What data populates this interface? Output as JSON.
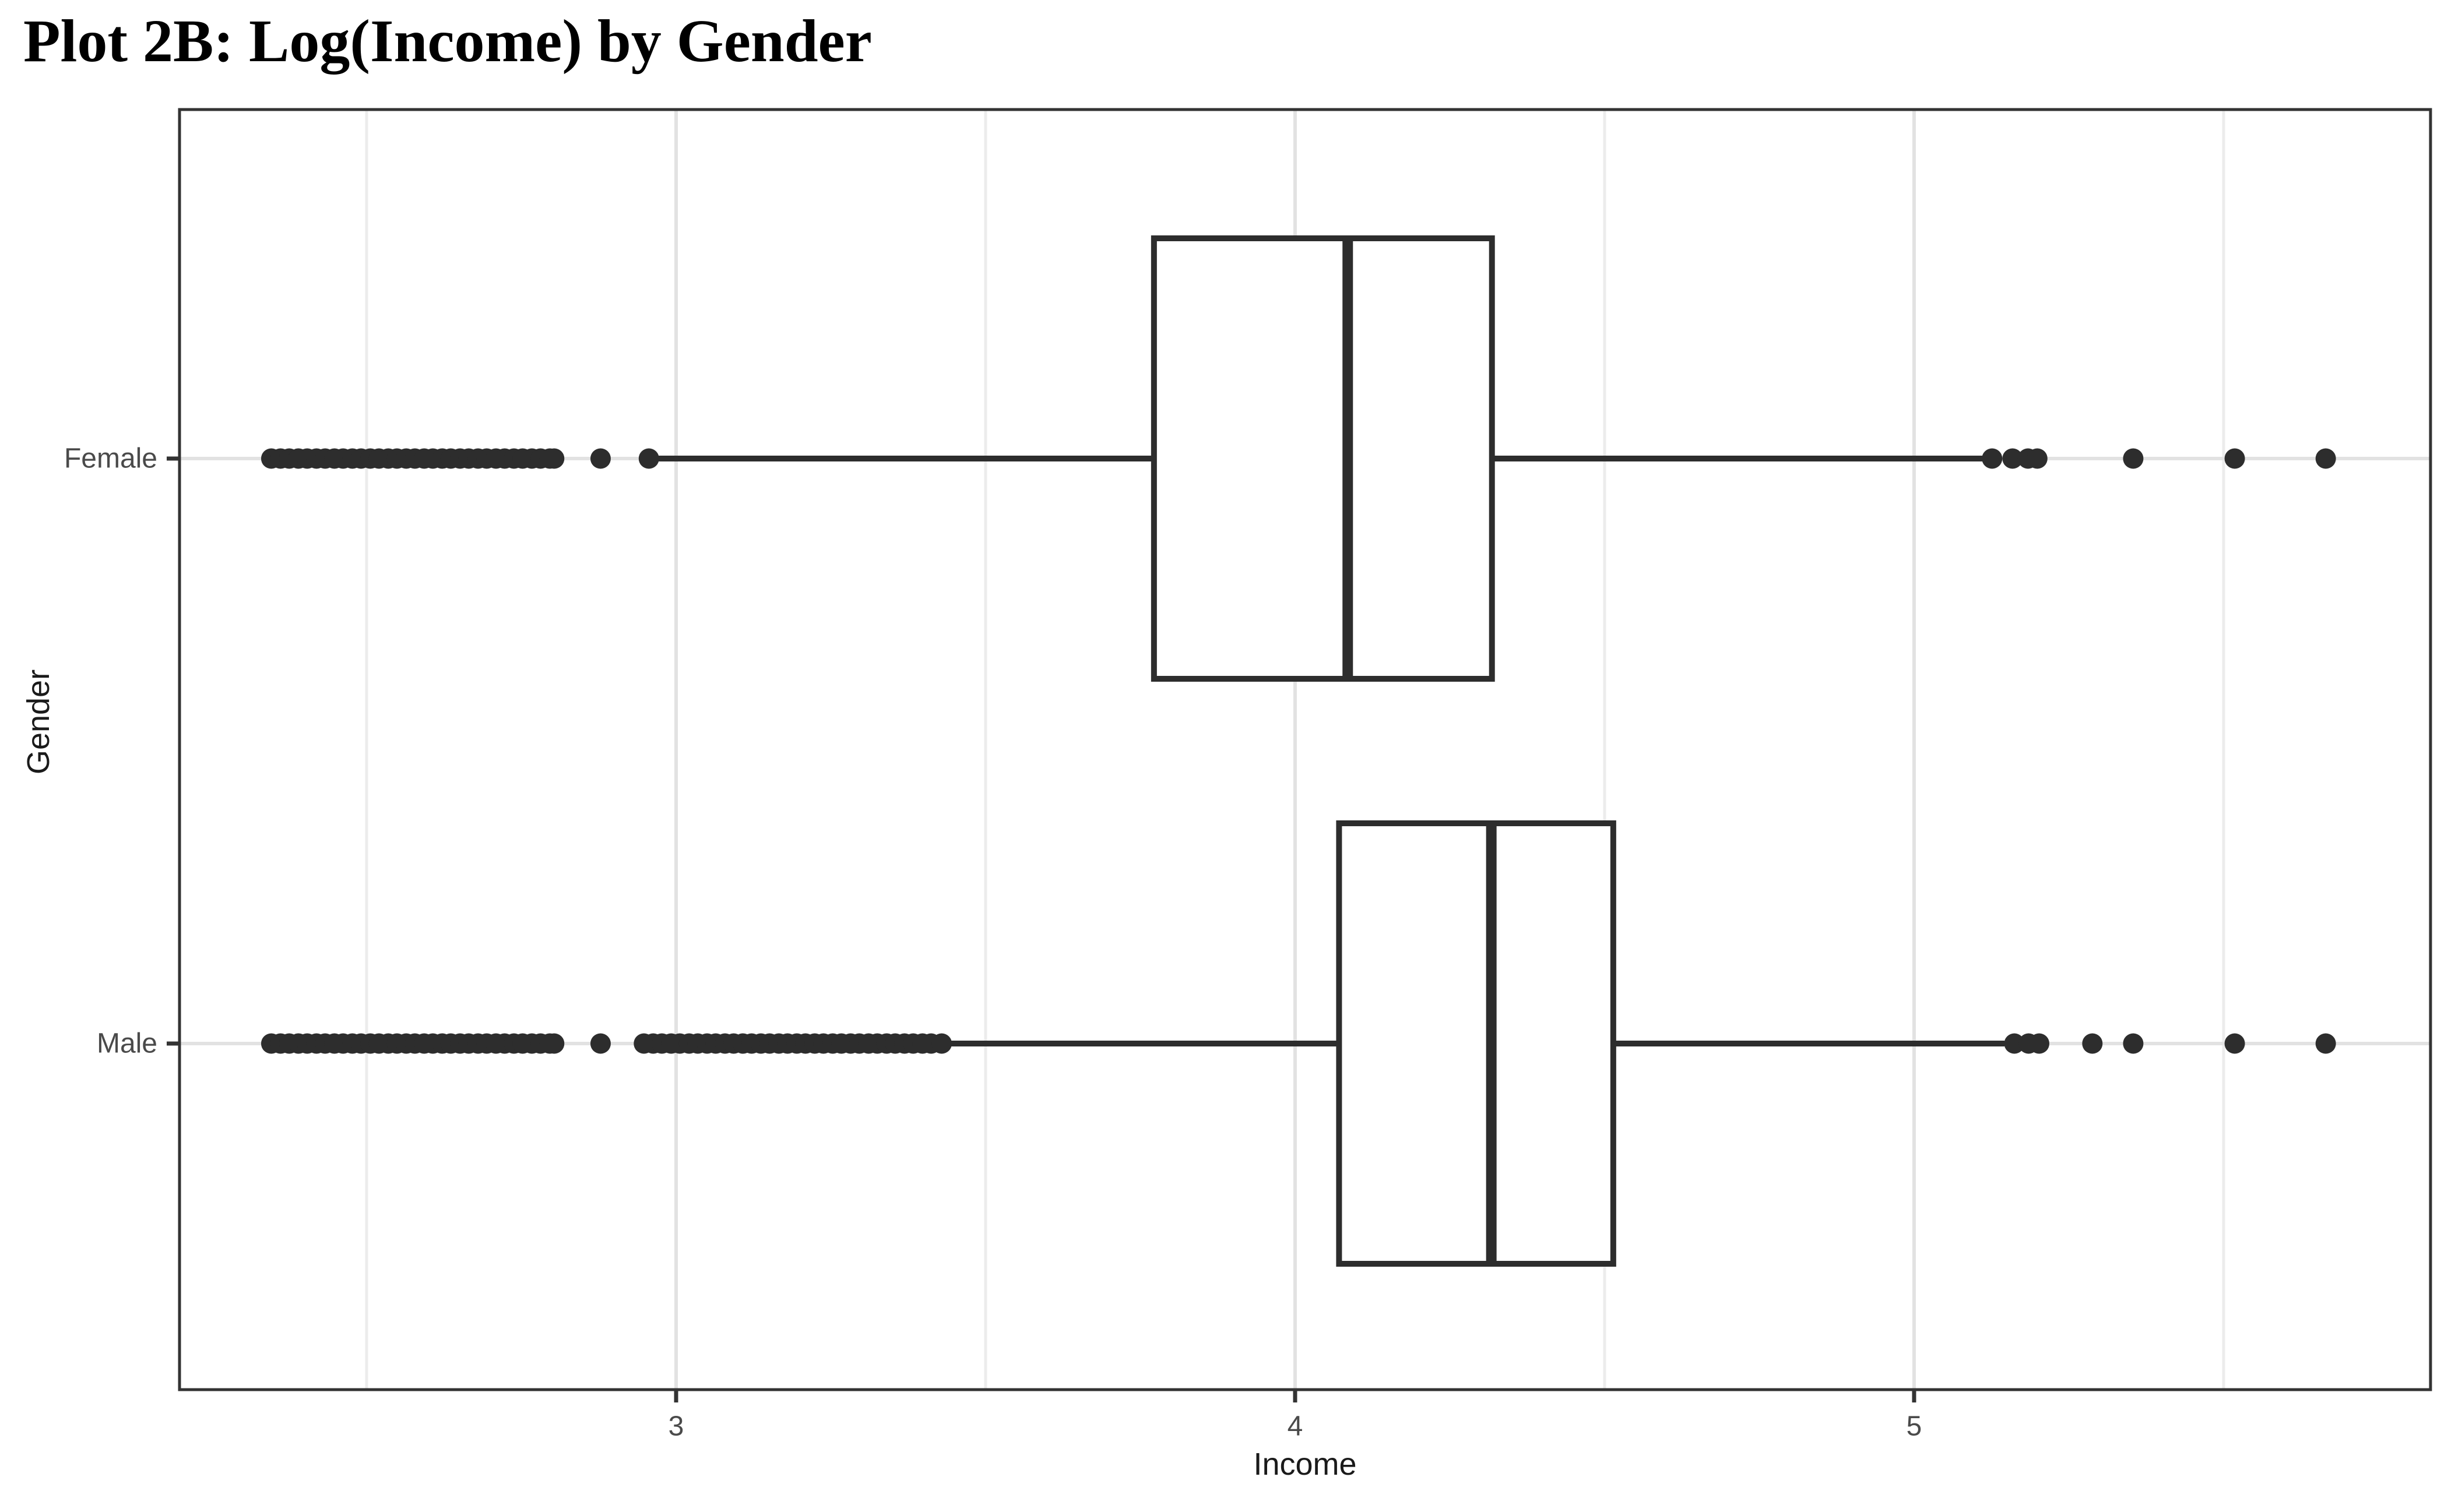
{
  "chart_data": {
    "type": "boxplot",
    "orientation": "horizontal",
    "title": "Plot 2B: Log(Income) by Gender",
    "xlabel": "Income",
    "ylabel": "Gender",
    "categories": [
      "Female",
      "Male"
    ],
    "legend": "none",
    "x_axis": {
      "range": [
        2.2,
        5.83
      ],
      "major_ticks": [
        3,
        4,
        5
      ],
      "minor_ticks": [
        2.5,
        3.5,
        4.5,
        5.5
      ],
      "grid": true
    },
    "series": [
      {
        "name": "Female",
        "q1": 3.772,
        "median": 4.085,
        "q3": 4.318,
        "whisker_low": 2.97,
        "whisker_high": 5.12,
        "outliers_low": [
          2.346,
          2.361,
          2.375,
          2.39,
          2.404,
          2.419,
          2.433,
          2.448,
          2.462,
          2.477,
          2.491,
          2.506,
          2.52,
          2.535,
          2.549,
          2.564,
          2.578,
          2.593,
          2.607,
          2.622,
          2.636,
          2.651,
          2.665,
          2.68,
          2.694,
          2.709,
          2.723,
          2.738,
          2.752,
          2.767,
          2.781,
          2.796,
          2.803,
          2.878,
          2.956
        ],
        "outliers_high": [
          5.126,
          5.159,
          5.184,
          5.199,
          5.354,
          5.518,
          5.665
        ]
      },
      {
        "name": "Male",
        "q1": 4.071,
        "median": 4.317,
        "q3": 4.514,
        "whisker_low": 3.429,
        "whisker_high": 5.146,
        "outliers_low": [
          2.346,
          2.361,
          2.375,
          2.39,
          2.404,
          2.419,
          2.433,
          2.448,
          2.462,
          2.477,
          2.491,
          2.506,
          2.52,
          2.535,
          2.549,
          2.564,
          2.578,
          2.593,
          2.607,
          2.622,
          2.636,
          2.651,
          2.665,
          2.68,
          2.694,
          2.709,
          2.723,
          2.738,
          2.752,
          2.767,
          2.781,
          2.796,
          2.803,
          2.878,
          2.948,
          2.963,
          2.977,
          2.992,
          3.006,
          3.021,
          3.035,
          3.05,
          3.064,
          3.079,
          3.093,
          3.108,
          3.122,
          3.137,
          3.151,
          3.166,
          3.18,
          3.195,
          3.209,
          3.224,
          3.238,
          3.253,
          3.267,
          3.282,
          3.296,
          3.311,
          3.325,
          3.34,
          3.354,
          3.369,
          3.383,
          3.398,
          3.412,
          3.429
        ],
        "outliers_high": [
          5.162,
          5.185,
          5.202,
          5.288,
          5.354,
          5.518,
          5.665
        ]
      }
    ],
    "colors": {
      "geometry_stroke": "#2d2d2d",
      "box_fill": "#ffffff",
      "panel_border": "#333333",
      "grid_major": "#e2e2e2",
      "grid_minor": "#ececec",
      "axis_tick": "#333333",
      "axis_text": "#4a4a4a",
      "axis_title": "#1a1a1a",
      "title": "#000000",
      "background": "#ffffff"
    }
  }
}
